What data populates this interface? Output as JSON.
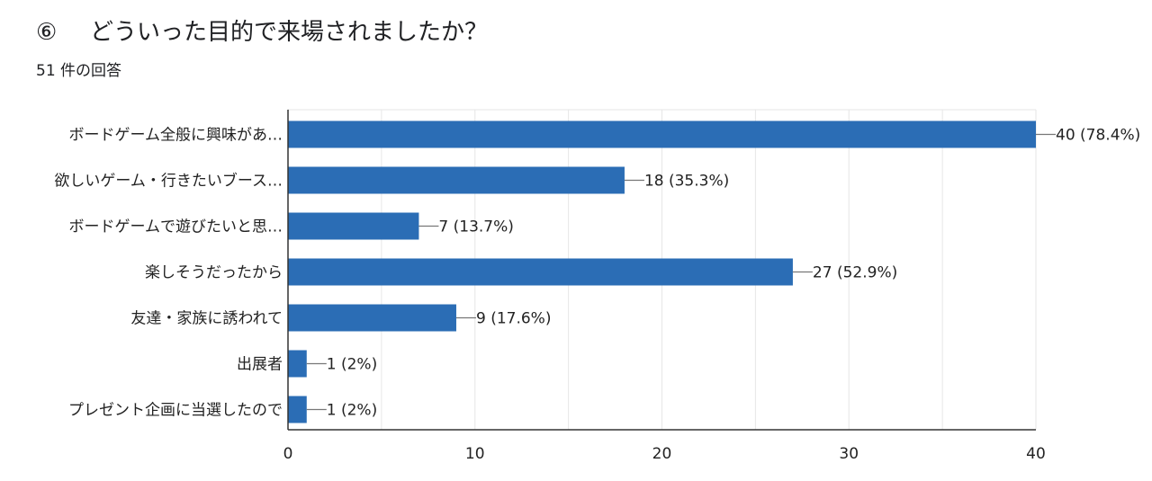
{
  "question": {
    "number": "⑥",
    "title": "どういった目的で来場されましたか？",
    "response_count": "51 件の回答"
  },
  "chart_data": {
    "type": "bar",
    "orientation": "horizontal",
    "categories": [
      "ボードゲーム全般に興味があ…",
      "欲しいゲーム・行きたいブース…",
      "ボードゲームで遊びたいと思…",
      "楽しそうだったから",
      "友達・家族に誘われて",
      "出展者",
      "プレゼント企画に当選したので"
    ],
    "values": [
      40,
      18,
      7,
      27,
      9,
      1,
      1
    ],
    "data_labels": [
      "40 (78.4%)",
      "18 (35.3%)",
      "7 (13.7%)",
      "27 (52.9%)",
      "9 (17.6%)",
      "1 (2%)",
      "1 (2%)"
    ],
    "xlim": [
      0,
      40
    ],
    "x_ticks": [
      0,
      10,
      20,
      30,
      40
    ],
    "grid": true,
    "bar_color": "#2b6db5",
    "grid_color": "#e6e6e6",
    "axis_color": "#333333",
    "leader_color": "#777777"
  }
}
